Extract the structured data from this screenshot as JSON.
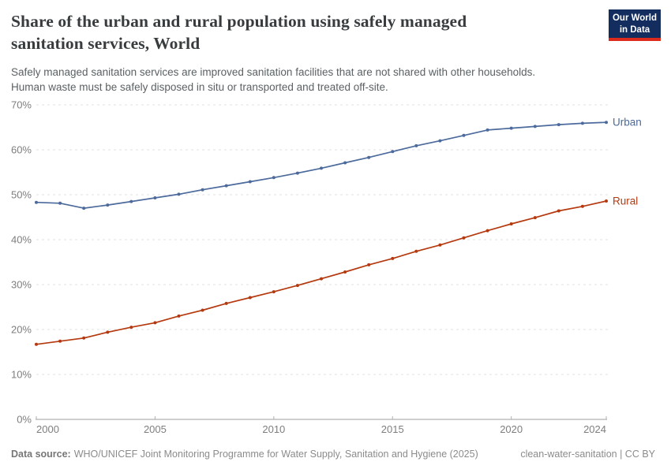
{
  "header": {
    "title_lines": [
      "Share of the urban and rural population using safely managed",
      "sanitation services, World"
    ],
    "subtitle_lines": [
      "Safely managed sanitation services are improved sanitation facilities that are not shared with other households.",
      "Human waste must be safely disposed in situ or transported and treated off-site."
    ],
    "logo_lines": [
      "Our World",
      "in Data"
    ],
    "logo_bg_color": "#122d5e",
    "logo_accent_color": "#dc2a1d"
  },
  "footer": {
    "data_source_label": "Data source:",
    "data_source_text": "WHO/UNICEF Joint Monitoring Programme for Water Supply, Sanitation and Hygiene (2025)",
    "license_text": "clean-water-sanitation | CC BY"
  },
  "chart_data": {
    "type": "line",
    "title": "Share of the urban and rural population using safely managed sanitation services, World",
    "xlabel": "",
    "ylabel": "",
    "x": [
      2000,
      2001,
      2002,
      2003,
      2004,
      2005,
      2006,
      2007,
      2008,
      2009,
      2010,
      2011,
      2012,
      2013,
      2014,
      2015,
      2016,
      2017,
      2018,
      2019,
      2020,
      2021,
      2022,
      2023,
      2024
    ],
    "series": [
      {
        "name": "Urban",
        "color": "#4c6a9c",
        "values": [
          48.3,
          48.1,
          47.0,
          47.7,
          48.5,
          49.3,
          50.1,
          51.1,
          52.0,
          52.9,
          53.8,
          54.8,
          55.9,
          57.1,
          58.3,
          59.6,
          60.9,
          62.0,
          63.2,
          64.4,
          64.8,
          65.2,
          65.6,
          65.9,
          66.1
        ]
      },
      {
        "name": "Rural",
        "color": "#b5390e",
        "values": [
          16.7,
          17.4,
          18.1,
          19.4,
          20.5,
          21.5,
          23.0,
          24.3,
          25.8,
          27.1,
          28.4,
          29.8,
          31.3,
          32.8,
          34.4,
          35.8,
          37.4,
          38.8,
          40.4,
          42.0,
          43.5,
          44.9,
          46.4,
          47.4,
          48.6
        ]
      }
    ],
    "xlim": [
      2000,
      2024
    ],
    "ylim": [
      0,
      70
    ],
    "yticks": [
      0,
      10,
      20,
      30,
      40,
      50,
      60,
      70
    ],
    "ytick_suffix": "%",
    "xticks": [
      2000,
      2005,
      2010,
      2015,
      2020,
      2024
    ],
    "grid": "horizontal-dashed",
    "legend_position": "line-end-labels",
    "marker": "dot",
    "grid_color": "#e0e0e0",
    "axis_color": "#9c9c9c",
    "tick_color": "#b0b0b0",
    "tick_label_color": "#7e7e7e"
  }
}
